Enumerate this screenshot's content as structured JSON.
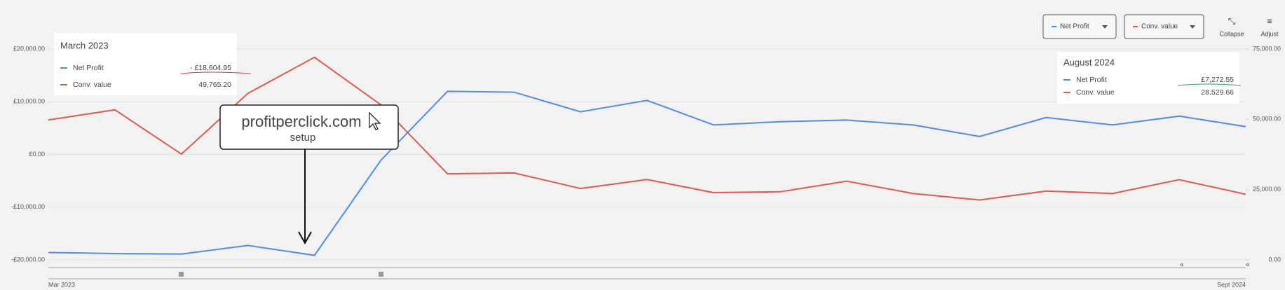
{
  "chart_data": {
    "type": "line",
    "categories": [
      "Mar 2023",
      null,
      null,
      null,
      null,
      null,
      null,
      null,
      null,
      null,
      null,
      null,
      null,
      null,
      null,
      null,
      null,
      null,
      "Sept 2024"
    ],
    "series": [
      {
        "name": "Net Profit",
        "color": "#4a8fe7",
        "values": [
          -18604.95,
          -18800,
          -18900,
          -17260,
          -19130,
          -1090,
          11975,
          11820,
          8090,
          10265,
          5600,
          6220,
          6530,
          5600,
          3420,
          7000,
          5600,
          7272.55,
          5290
        ]
      },
      {
        "name": "Conv. value",
        "color": "#e0584f",
        "axis": "y2",
        "values": [
          49765.2,
          53380,
          37630,
          59220,
          72050,
          55130,
          30630,
          30920,
          25380,
          28590,
          23920,
          24210,
          28000,
          23630,
          21300,
          24500,
          23630,
          28529.66,
          23340
        ]
      }
    ],
    "ylim": [
      -20000,
      20000
    ],
    "yticks": [
      {
        "value": 20000,
        "label": "£20,000.00"
      },
      {
        "value": 10000,
        "label": "£10,000.00"
      },
      {
        "value": 0,
        "label": "£0.00"
      },
      {
        "value": -10000,
        "label": "-£10,000.00"
      },
      {
        "value": -20000,
        "label": "-£20,000.00"
      }
    ],
    "y2lim": [
      0,
      75000
    ],
    "y2ticks": [
      {
        "value": 75000,
        "label": "75,000.00"
      },
      {
        "value": 50000,
        "label": "50,000.00"
      },
      {
        "value": 25000,
        "label": "25,000.00"
      },
      {
        "value": 0,
        "label": "0.00"
      }
    ],
    "grid": true,
    "tooltips": [
      {
        "index": 0,
        "title": "March 2023",
        "rows": [
          {
            "name": "Net Profit",
            "value": "- £18,604.95"
          },
          {
            "name": "Conv. value",
            "value": "49,765.20"
          }
        ]
      },
      {
        "index": 17,
        "title": "August 2024",
        "rows": [
          {
            "name": "Net Profit",
            "value": "£7,272.55"
          },
          {
            "name": "Conv. value",
            "value": "28,529.66"
          }
        ]
      }
    ],
    "annotation": {
      "title": "profitperclick.com",
      "subtitle": "setup"
    },
    "controls": [
      "Collapse",
      "Adjust"
    ]
  }
}
